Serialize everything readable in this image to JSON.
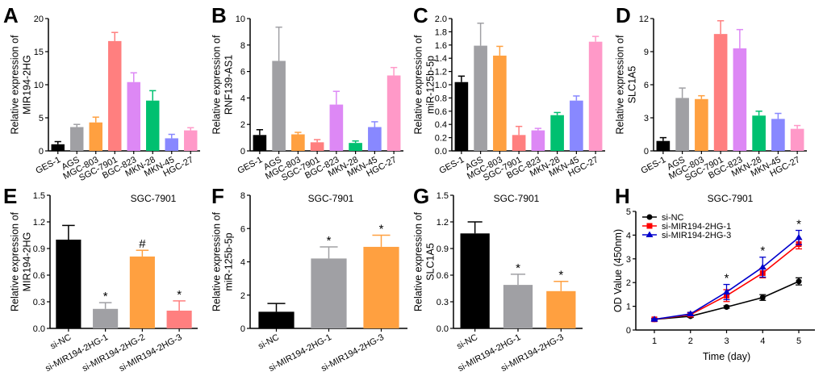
{
  "colors": {
    "GES-1": "#000000",
    "AGS": "#a0a0a4",
    "MGC-803": "#ffa040",
    "SGC-7901": "#ff7f7f",
    "BGC-823": "#dd88f5",
    "MKN-28": "#00c070",
    "MKN-45": "#8888ff",
    "HGC-27": "#ff99c8"
  },
  "chart_data": [
    {
      "panel": "A",
      "type": "bar",
      "title": "",
      "ylabel": [
        "Relative expression of",
        "MIR194-2HG"
      ],
      "ylim": [
        0,
        20
      ],
      "yticks": [
        "0",
        "5",
        "10",
        "15",
        "20"
      ],
      "categories": [
        "GES-1",
        "AGS",
        "MGC-803",
        "SGC-7901",
        "BGC-823",
        "MKN-28",
        "MKN-45",
        "HGC-27"
      ],
      "values": [
        1.0,
        3.6,
        4.3,
        16.6,
        10.4,
        7.6,
        1.9,
        3.1
      ],
      "error_top": [
        1.4,
        4.0,
        5.1,
        17.9,
        11.8,
        9.1,
        2.5,
        3.5
      ],
      "bar_colors": [
        "#000000",
        "#a0a0a4",
        "#ffa040",
        "#ff7f7f",
        "#dd88f5",
        "#00c070",
        "#8888ff",
        "#ff99c8"
      ]
    },
    {
      "panel": "B",
      "type": "bar",
      "title": "",
      "ylabel": [
        "Relative expression of",
        "RNF139-AS1"
      ],
      "ylim": [
        0,
        10
      ],
      "yticks": [
        "0",
        "2",
        "4",
        "6",
        "8",
        "10"
      ],
      "categories": [
        "GES-1",
        "AGS",
        "MGC-803",
        "SGC-7901",
        "BGC-823",
        "MKN-28",
        "MKN-45",
        "HGC-27"
      ],
      "values": [
        1.2,
        6.8,
        1.25,
        0.65,
        3.5,
        0.6,
        1.8,
        5.7
      ],
      "error_top": [
        1.6,
        9.35,
        1.4,
        0.85,
        4.5,
        0.75,
        2.2,
        6.3
      ],
      "bar_colors": [
        "#000000",
        "#a0a0a4",
        "#ffa040",
        "#ff7f7f",
        "#dd88f5",
        "#00c070",
        "#8888ff",
        "#ff99c8"
      ]
    },
    {
      "panel": "C",
      "type": "bar",
      "title": "",
      "ylabel": [
        "Relative expression of",
        "miR-125b-5p"
      ],
      "ylim": [
        0,
        2.0
      ],
      "yticks": [
        "0.0",
        "0.2",
        "0.4",
        "0.6",
        "0.8",
        "1.0",
        "1.2",
        "1.4",
        "1.6",
        "1.8",
        "2.0"
      ],
      "categories": [
        "GES-1",
        "AGS",
        "MGC-803",
        "SGC-7901",
        "BGC-823",
        "MKN-28",
        "MKN-45",
        "HGC-27"
      ],
      "values": [
        1.04,
        1.59,
        1.44,
        0.24,
        0.31,
        0.54,
        0.76,
        1.65
      ],
      "error_top": [
        1.13,
        1.93,
        1.58,
        0.37,
        0.34,
        0.58,
        0.83,
        1.73
      ],
      "bar_colors": [
        "#000000",
        "#a0a0a4",
        "#ffa040",
        "#ff7f7f",
        "#dd88f5",
        "#00c070",
        "#8888ff",
        "#ff99c8"
      ]
    },
    {
      "panel": "D",
      "type": "bar",
      "title": "",
      "ylabel": [
        "Relative expression of",
        "SLC1A5"
      ],
      "ylim": [
        0,
        12
      ],
      "yticks": [
        "0",
        "3",
        "6",
        "9",
        "12"
      ],
      "categories": [
        "GES-1",
        "AGS",
        "MGC-803",
        "SGC-7901",
        "BGC-823",
        "MKN-28",
        "MKN-45",
        "HGC-27"
      ],
      "values": [
        0.9,
        4.8,
        4.7,
        10.6,
        9.3,
        3.2,
        2.9,
        2.0
      ],
      "error_top": [
        1.2,
        5.7,
        5.0,
        11.8,
        11.0,
        3.6,
        3.4,
        2.3
      ],
      "bar_colors": [
        "#000000",
        "#a0a0a4",
        "#ffa040",
        "#ff7f7f",
        "#dd88f5",
        "#00c070",
        "#8888ff",
        "#ff99c8"
      ]
    },
    {
      "panel": "E",
      "type": "bar",
      "title": "SGC-7901",
      "ylabel": [
        "Relative expression of",
        "MIR194-2HG"
      ],
      "ylim": [
        0,
        1.5
      ],
      "yticks": [
        "0.0",
        "0.3",
        "0.6",
        "0.9",
        "1.2",
        "1.5"
      ],
      "categories": [
        "si-NC",
        "si-MIR194-2HG-1",
        "si-MIR194-2HG-2",
        "si-MIR194-2HG-3"
      ],
      "values": [
        1.0,
        0.22,
        0.81,
        0.2
      ],
      "error_top": [
        1.16,
        0.29,
        0.88,
        0.31
      ],
      "marks": [
        "",
        "*",
        "#",
        "*"
      ],
      "bar_colors": [
        "#000000",
        "#a0a0a4",
        "#ffa040",
        "#ff7f7f"
      ]
    },
    {
      "panel": "F",
      "type": "bar",
      "title": "SGC-7901",
      "ylabel": [
        "Relative expression of",
        "miR-125b-5p"
      ],
      "ylim": [
        0,
        8
      ],
      "yticks": [
        "0",
        "2",
        "4",
        "6",
        "8"
      ],
      "categories": [
        "si-NC",
        "si-MIR194-2HG-1",
        "si-MIR194-2HG-3"
      ],
      "values": [
        1.0,
        4.2,
        4.9
      ],
      "error_top": [
        1.5,
        4.9,
        5.6
      ],
      "marks": [
        "",
        "*",
        "*"
      ],
      "bar_colors": [
        "#000000",
        "#a0a0a4",
        "#ffa040"
      ]
    },
    {
      "panel": "G",
      "type": "bar",
      "title": "SGC-7901",
      "ylabel": [
        "Relative expression of",
        "SLC1A5"
      ],
      "ylim": [
        0,
        1.5
      ],
      "yticks": [
        "0.0",
        "0.3",
        "0.6",
        "0.9",
        "1.2",
        "1.5"
      ],
      "categories": [
        "si-NC",
        "si-MIR194-2HG-1",
        "si-MIR194-2HG-3"
      ],
      "values": [
        1.07,
        0.49,
        0.42
      ],
      "error_top": [
        1.2,
        0.61,
        0.53
      ],
      "marks": [
        "",
        "*",
        "*"
      ],
      "bar_colors": [
        "#000000",
        "#a0a0a4",
        "#ffa040"
      ]
    },
    {
      "panel": "H",
      "type": "line",
      "title": "SGC-7901",
      "ylabel": [
        "OD Value (450nm)"
      ],
      "xlabel": "Time (day)",
      "ylim": [
        0,
        5
      ],
      "xlim": [
        1,
        5
      ],
      "yticks": [
        "0",
        "1",
        "2",
        "3",
        "4",
        "5"
      ],
      "x": [
        1,
        2,
        3,
        4,
        5
      ],
      "legend": "top-left",
      "series": [
        {
          "name": "si-NC",
          "color": "#000000",
          "marker": "circle",
          "values": [
            0.45,
            0.58,
            0.97,
            1.37,
            2.05
          ],
          "error": [
            0.03,
            0.05,
            0.05,
            0.12,
            0.15
          ]
        },
        {
          "name": "si-MIR194-2HG-1",
          "color": "#ff0000",
          "marker": "square",
          "values": [
            0.45,
            0.65,
            1.45,
            2.4,
            3.62
          ],
          "error": [
            0.03,
            0.06,
            0.25,
            0.2,
            0.2
          ]
        },
        {
          "name": "si-MIR194-2HG-3",
          "color": "#0000cc",
          "marker": "triangle",
          "values": [
            0.45,
            0.68,
            1.6,
            2.65,
            3.9
          ],
          "error": [
            0.03,
            0.06,
            0.32,
            0.42,
            0.3
          ]
        }
      ],
      "marks_at_x": [
        3,
        4,
        5
      ],
      "mark": "*"
    }
  ]
}
